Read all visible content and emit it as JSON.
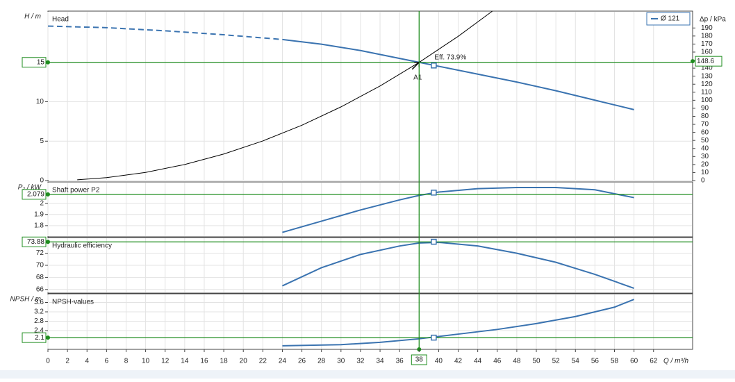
{
  "chart_data": {
    "type": "line",
    "xlabel": "Q / m³/h",
    "xlim": [
      0,
      66
    ],
    "xticks": [
      0,
      2,
      4,
      6,
      8,
      10,
      12,
      14,
      16,
      18,
      20,
      22,
      24,
      26,
      28,
      30,
      32,
      34,
      36,
      38,
      40,
      42,
      44,
      46,
      48,
      50,
      52,
      54,
      56,
      58,
      60,
      62
    ],
    "op_x": 38,
    "grid": true,
    "panels": [
      {
        "title": "Head",
        "ylabel": "H / m",
        "y2label": "Δp / kPa",
        "ylim": [
          0,
          21.5
        ],
        "yticks": [
          0,
          5,
          10,
          15
        ],
        "y2lim": [
          0,
          211
        ],
        "y2ticks": [
          0,
          10,
          20,
          30,
          40,
          50,
          60,
          70,
          80,
          90,
          100,
          110,
          120,
          130,
          140,
          150,
          160,
          170,
          180,
          190
        ],
        "op_y": 15,
        "op_y2": 148.6,
        "eff_label": "Eff. 73.9%",
        "point_label": "A1",
        "legend": "top-right",
        "marker": {
          "x": 39.5,
          "y": 14.6
        },
        "series": [
          {
            "name": "Ø 121",
            "color": "#3a73b0",
            "x": [
              24,
              28,
              32,
              36,
              38,
              40,
              44,
              48,
              52,
              56,
              60
            ],
            "values": [
              17.9,
              17.3,
              16.5,
              15.5,
              15,
              14.5,
              13.5,
              12.5,
              11.4,
              10.2,
              9.0
            ]
          },
          {
            "color": "#3a73b0",
            "dash": true,
            "x": [
              0,
              6,
              12,
              18,
              24
            ],
            "values": [
              19.6,
              19.4,
              19.0,
              18.5,
              17.9
            ]
          },
          {
            "color": "#000000",
            "x": [
              3,
              6,
              10,
              14,
              18,
              22,
              26,
              30,
              34,
              38,
              42,
              45.5
            ],
            "values": [
              0.1,
              0.37,
              1.04,
              2.04,
              3.37,
              5.03,
              7.02,
              9.35,
              12.0,
              15.0,
              18.3,
              21.5
            ]
          }
        ]
      },
      {
        "title": "Shaft power P2",
        "ylabel": "P₂ / kW",
        "ylim": [
          1.7,
          2.19
        ],
        "yticks": [
          1.8,
          1.9,
          2
        ],
        "op_y": 2.079,
        "marker": {
          "x": 39.5,
          "y": 2.095
        },
        "series": [
          {
            "color": "#3a73b0",
            "x": [
              24,
              28,
              32,
              36,
              38,
              40,
              44,
              48,
              52,
              56,
              60
            ],
            "values": [
              1.74,
              1.84,
              1.94,
              2.03,
              2.07,
              2.1,
              2.13,
              2.14,
              2.14,
              2.12,
              2.05
            ]
          }
        ]
      },
      {
        "title": "Hydraulic efficiency",
        "ylim": [
          65.4,
          74.6
        ],
        "yticks": [
          66,
          68,
          70,
          72
        ],
        "op_y": 73.88,
        "marker": {
          "x": 39.5,
          "y": 73.9
        },
        "series": [
          {
            "color": "#3a73b0",
            "x": [
              24,
              28,
              32,
              36,
              38,
              40,
              44,
              48,
              52,
              56,
              60
            ],
            "values": [
              66.6,
              69.6,
              71.8,
              73.2,
              73.7,
              73.8,
              73.2,
              72.0,
              70.5,
              68.5,
              66.2
            ]
          }
        ]
      },
      {
        "title": "NPSH-values",
        "ylabel": "NPSH / m",
        "ylim": [
          1.6,
          3.97
        ],
        "yticks": [
          2.4,
          2.8,
          3.2,
          3.6
        ],
        "op_y": 2.1,
        "marker": {
          "x": 39.5,
          "y": 2.1
        },
        "series": [
          {
            "color": "#3a73b0",
            "x": [
              24,
              30,
              34,
              38,
              42,
              46,
              50,
              54,
              58,
              60
            ],
            "values": [
              1.75,
              1.8,
              1.9,
              2.05,
              2.25,
              2.45,
              2.7,
              3.0,
              3.4,
              3.73
            ]
          }
        ]
      }
    ]
  }
}
